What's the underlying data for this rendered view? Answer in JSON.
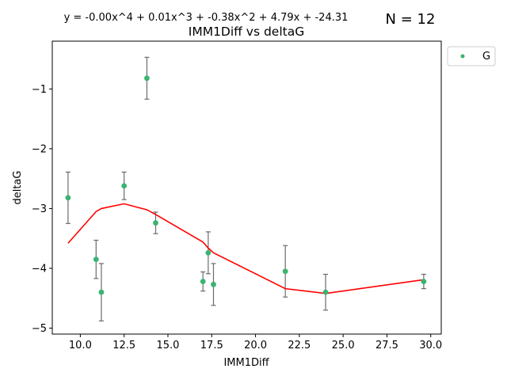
{
  "chart_data": {
    "type": "scatter",
    "title": "IMM1Diff vs deltaG",
    "equation": "y = -0.00x^4 + 0.01x^3 + -0.38x^2 + 4.79x + -24.31",
    "n_label": "N = 12",
    "xlabel": "IMM1Diff",
    "ylabel": "deltaG",
    "xlim": [
      8.4,
      30.6
    ],
    "ylim": [
      -5.1,
      -0.2
    ],
    "xticks": [
      10.0,
      12.5,
      15.0,
      17.5,
      20.0,
      22.5,
      25.0,
      27.5,
      30.0
    ],
    "xtick_labels": [
      "10.0",
      "12.5",
      "15.0",
      "17.5",
      "20.0",
      "22.5",
      "25.0",
      "27.5",
      "30.0"
    ],
    "yticks": [
      -5,
      -4,
      -3,
      -2,
      -1
    ],
    "ytick_labels": [
      "−5",
      "−4",
      "−3",
      "−2",
      "−1"
    ],
    "legend": {
      "entries": [
        "G"
      ],
      "placement": "upper right, outside plot"
    },
    "series": [
      {
        "name": "G",
        "color": "#3cb371",
        "points": [
          {
            "x": 9.3,
            "y": -2.82,
            "err": 0.43
          },
          {
            "x": 10.9,
            "y": -3.85,
            "err": 0.32
          },
          {
            "x": 11.2,
            "y": -4.4,
            "err": 0.48
          },
          {
            "x": 12.5,
            "y": -2.62,
            "err": 0.23
          },
          {
            "x": 13.8,
            "y": -0.82,
            "err": 0.35
          },
          {
            "x": 14.3,
            "y": -3.24,
            "err": 0.18
          },
          {
            "x": 17.0,
            "y": -4.22,
            "err": 0.16
          },
          {
            "x": 17.3,
            "y": -3.74,
            "err": 0.35
          },
          {
            "x": 17.6,
            "y": -4.27,
            "err": 0.35
          },
          {
            "x": 21.7,
            "y": -4.05,
            "err": 0.43
          },
          {
            "x": 24.0,
            "y": -4.4,
            "err": 0.3
          },
          {
            "x": 29.6,
            "y": -4.22,
            "err": 0.12
          }
        ]
      }
    ],
    "fit_line": {
      "color": "#ff0000",
      "x": [
        9.3,
        10.9,
        11.2,
        12.5,
        13.8,
        14.3,
        17.0,
        17.3,
        17.6,
        21.7,
        24.0,
        29.6
      ],
      "y": [
        -3.58,
        -3.05,
        -3.0,
        -2.92,
        -3.02,
        -3.1,
        -3.56,
        -3.66,
        -3.74,
        -4.34,
        -4.42,
        -4.19
      ]
    },
    "grid": false
  },
  "colors": {
    "marker": "#3cb371",
    "errorbar": "#6b6b6b",
    "fit": "#ff0000",
    "axis": "#000000"
  }
}
